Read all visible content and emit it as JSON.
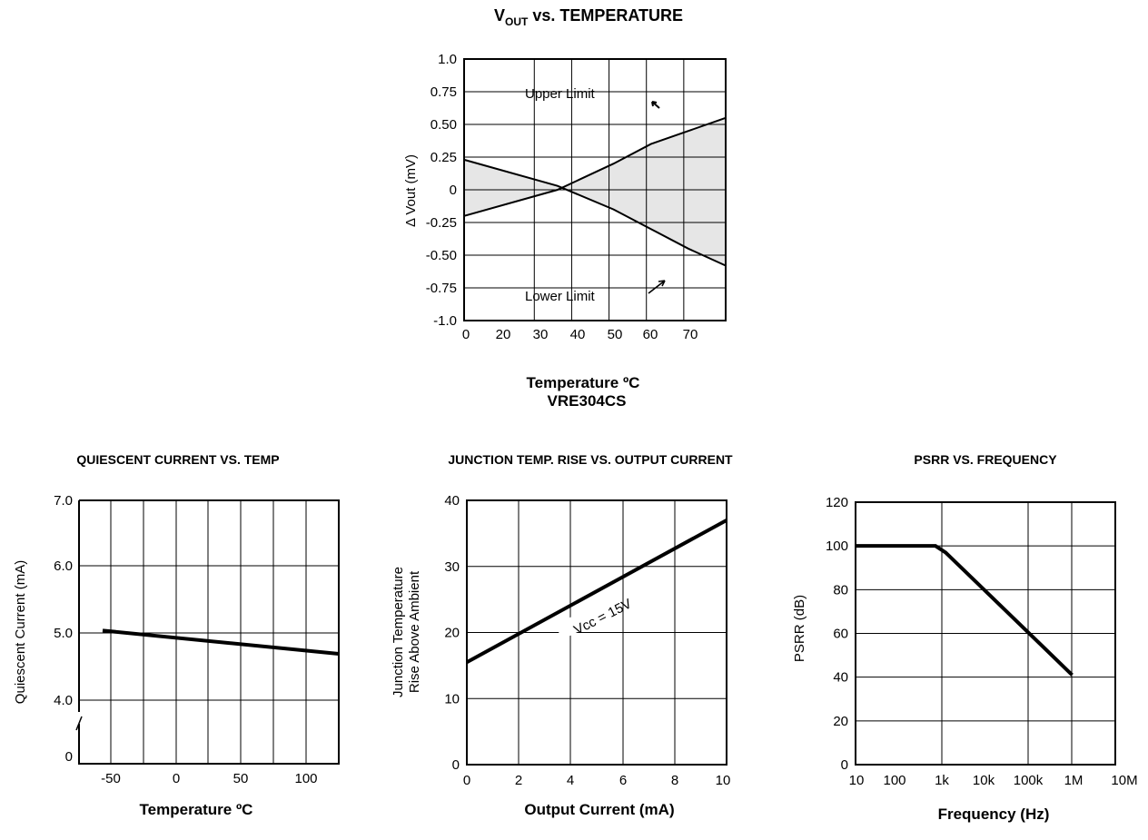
{
  "charts": {
    "main": {
      "title": "V",
      "title_sub": "OUT",
      "title_rest": " vs. TEMPERATURE",
      "ylabel": "Δ Vout  (mV)",
      "xlabel": "Temperature ºC",
      "subtitle": "VRE304CS",
      "yticks": [
        "1.0",
        "0.75",
        "0.50",
        "0.25",
        "0",
        "-0.25",
        "-0.50",
        "-0.75",
        "-1.0"
      ],
      "xticks": [
        "0",
        "20",
        "30",
        "40",
        "50",
        "60",
        "70"
      ],
      "upper_label": "Upper  Limit",
      "lower_label": "Lower  Limit"
    },
    "quiescent": {
      "title": "QUIESCENT CURRENT VS. TEMP",
      "ylabel": "Quiescent  Current  (mA)",
      "xlabel": "Temperature ºC",
      "yticks": [
        "7.0",
        "6.0",
        "5.0",
        "4.0",
        "0"
      ],
      "xticks": [
        "-50",
        "0",
        "50",
        "100"
      ]
    },
    "junction": {
      "title": "JUNCTION TEMP. RISE VS. OUTPUT CURRENT",
      "ylabel1": "Junction Temperature",
      "ylabel2": "Rise Above Ambient",
      "xlabel": "Output Current (mA)",
      "yticks": [
        "40",
        "30",
        "20",
        "10",
        "0"
      ],
      "xticks": [
        "0",
        "2",
        "4",
        "6",
        "8",
        "10"
      ],
      "annotation": "Vcc  =  15V"
    },
    "psrr": {
      "title": "PSRR VS. FREQUENCY",
      "ylabel": "PSRR  (dB)",
      "xlabel": "Frequency (Hz)",
      "yticks": [
        "120",
        "100",
        "80",
        "60",
        "40",
        "20",
        "0"
      ],
      "xticks": [
        "10",
        "100",
        "1k",
        "10k",
        "100k",
        "1M",
        "10M"
      ]
    }
  },
  "chart_data": [
    {
      "type": "area",
      "title": "VOUT vs. TEMPERATURE",
      "xlabel": "Temperature ºC",
      "ylabel": "Δ Vout (mV)",
      "xlim": [
        0,
        70
      ],
      "ylim": [
        -1.0,
        1.0
      ],
      "grid": true,
      "series": [
        {
          "name": "Upper Limit",
          "x": [
            0,
            25,
            40,
            50,
            60,
            70
          ],
          "y": [
            -0.2,
            0.0,
            0.2,
            0.35,
            0.45,
            0.55
          ]
        },
        {
          "name": "Lower Limit",
          "x": [
            0,
            25,
            40,
            50,
            60,
            70
          ],
          "y": [
            0.23,
            0.03,
            -0.15,
            -0.3,
            -0.45,
            -0.58
          ]
        }
      ]
    },
    {
      "type": "line",
      "title": "QUIESCENT CURRENT VS. TEMP",
      "xlabel": "Temperature ºC",
      "ylabel": "Quiescent Current (mA)",
      "ylim": [
        3.0,
        7.0
      ],
      "grid": true,
      "series": [
        {
          "x": [
            -55,
            125
          ],
          "y": [
            5.05,
            4.7
          ]
        }
      ]
    },
    {
      "type": "line",
      "title": "JUNCTION TEMP. RISE VS. OUTPUT CURRENT",
      "xlabel": "Output Current (mA)",
      "ylabel": "Junction Temperature Rise Above Ambient",
      "xlim": [
        0,
        10
      ],
      "ylim": [
        0,
        40
      ],
      "grid": true,
      "series": [
        {
          "x": [
            0,
            10
          ],
          "y": [
            15.5,
            37
          ]
        }
      ]
    },
    {
      "type": "line",
      "title": "PSRR VS. FREQUENCY",
      "xlabel": "Frequency (Hz)",
      "ylabel": "PSRR (dB)",
      "xscale": "log",
      "xlim": [
        10,
        10000000
      ],
      "ylim": [
        0,
        120
      ],
      "grid": true,
      "series": [
        {
          "x": [
            10,
            700,
            1200,
            1000000
          ],
          "y": [
            100,
            100,
            97,
            41
          ]
        }
      ]
    }
  ]
}
